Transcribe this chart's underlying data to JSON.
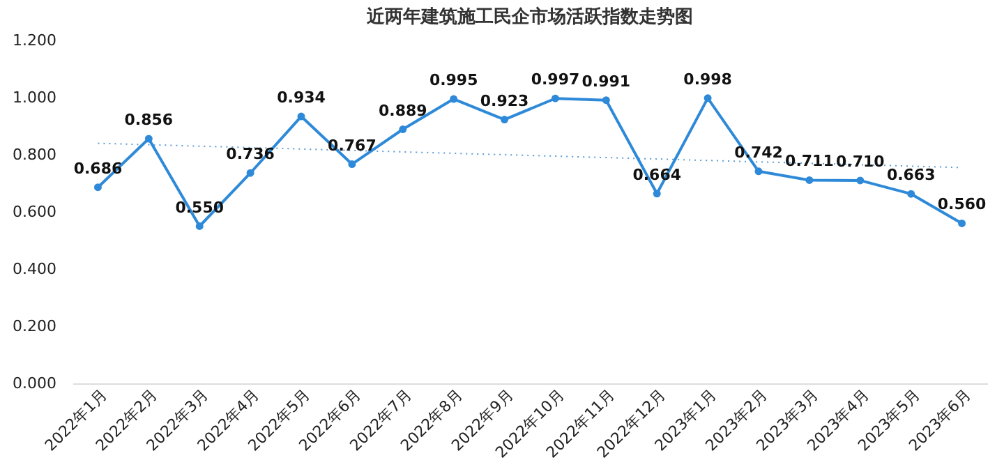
{
  "chart_data": {
    "type": "line",
    "title": "近两年建筑施工民企市场活跃指数走势图",
    "categories": [
      "2022年1月",
      "2022年2月",
      "2022年3月",
      "2022年4月",
      "2022年5月",
      "2022年6月",
      "2022年7月",
      "2022年8月",
      "2022年9月",
      "2022年10月",
      "2022年11月",
      "2022年12月",
      "2023年1月",
      "2023年2月",
      "2023年3月",
      "2023年4月",
      "2023年5月",
      "2023年6月"
    ],
    "series": [
      {
        "color": "#2e8ad8",
        "values": [
          0.686,
          0.856,
          0.55,
          0.736,
          0.934,
          0.767,
          0.889,
          0.995,
          0.923,
          0.997,
          0.991,
          0.664,
          0.998,
          0.742,
          0.711,
          0.71,
          0.663,
          0.56
        ],
        "value_labels": [
          "0.686",
          "0.856",
          "0.550",
          "0.736",
          "0.934",
          "0.767",
          "0.889",
          "0.995",
          "0.923",
          "0.997",
          "0.991",
          "0.664",
          "0.998",
          "0.742",
          "0.711",
          "0.710",
          "0.663",
          "0.560"
        ],
        "marker": "circle",
        "line_style": "solid"
      },
      {
        "type": "line",
        "color": "#5b9bd5",
        "x": [
          "2022年1月",
          "2023年6月"
        ],
        "values": [
          0.84,
          0.755
        ],
        "marker": "none",
        "line_style": "dotted"
      }
    ],
    "ylim": [
      0,
      1.2
    ],
    "yticks": [
      {
        "value": 0,
        "label": "0.000"
      },
      {
        "value": 0.2,
        "label": "0.200"
      },
      {
        "value": 0.4,
        "label": "0.400"
      },
      {
        "value": 0.6,
        "label": "0.600"
      },
      {
        "value": 0.8,
        "label": "0.800"
      },
      {
        "value": 1.0,
        "label": "1.000"
      },
      {
        "value": 1.2,
        "label": "1.200"
      }
    ]
  }
}
